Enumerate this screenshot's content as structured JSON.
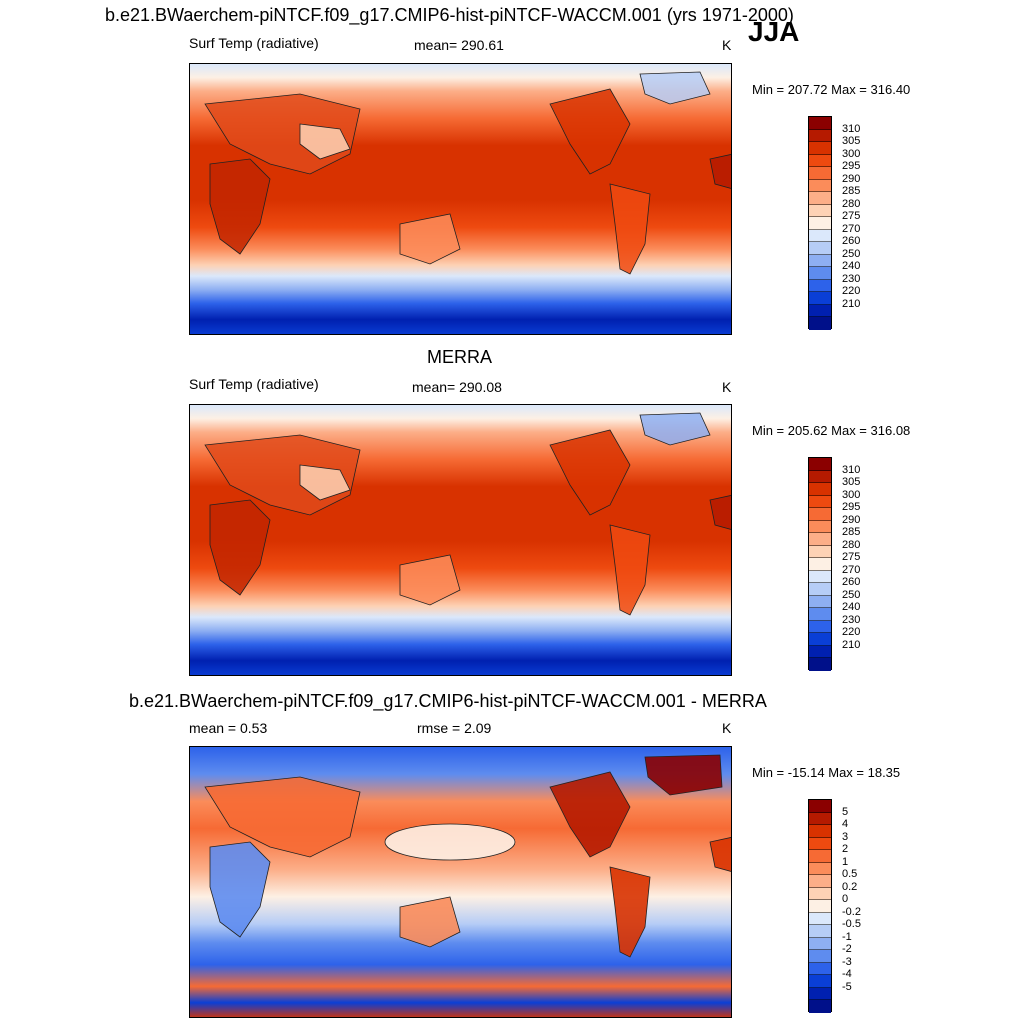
{
  "header": {
    "title": "b.e21.BWaerchem-piNTCF.f09_g17.CMIP6-hist-piNTCF-WACCM.001 (yrs 1971-2000)",
    "season": "JJA"
  },
  "panels": [
    {
      "title": "",
      "variable": "Surf Temp (radiative)",
      "stat": "mean= 290.61",
      "units": "K",
      "minmax": "Min = 207.72 Max = 316.40",
      "kind": "abs"
    },
    {
      "title": "MERRA",
      "variable": "Surf Temp (radiative)",
      "stat": "mean= 290.08",
      "units": "K",
      "minmax": "Min = 205.62 Max = 316.08",
      "kind": "abs"
    },
    {
      "title": "b.e21.BWaerchem-piNTCF.f09_g17.CMIP6-hist-piNTCF-WACCM.001 - MERRA",
      "variable": "mean =   0.53",
      "stat": "rmse =   2.09",
      "units": "K",
      "minmax": "Min = -15.14 Max =  18.35",
      "kind": "diff"
    }
  ],
  "colorbars": {
    "abs": {
      "labels": [
        "310",
        "305",
        "300",
        "295",
        "290",
        "285",
        "280",
        "275",
        "270",
        "260",
        "250",
        "240",
        "230",
        "220",
        "210"
      ],
      "colors": [
        "#8b0000",
        "#b51a00",
        "#d83200",
        "#ee4a10",
        "#f66a34",
        "#fb8c5a",
        "#fcae88",
        "#fdd2b5",
        "#fdf0e4",
        "#dbe8fb",
        "#b6cdf6",
        "#8eaff2",
        "#5e8cef",
        "#2d62ea",
        "#0a3fd6",
        "#0020b0",
        "#00108a"
      ]
    },
    "diff": {
      "labels": [
        "5",
        "4",
        "3",
        "2",
        "1",
        "0.5",
        "0.2",
        "0",
        "-0.2",
        "-0.5",
        "-1",
        "-2",
        "-3",
        "-4",
        "-5"
      ],
      "colors": [
        "#8b0000",
        "#b51a00",
        "#d83200",
        "#ee4a10",
        "#f66a34",
        "#fb8c5a",
        "#fcae88",
        "#fdd2b5",
        "#fdf0e4",
        "#dbe8fb",
        "#b6cdf6",
        "#8eaff2",
        "#5e8cef",
        "#2d62ea",
        "#0a3fd6",
        "#0020b0",
        "#00108a"
      ]
    }
  }
}
